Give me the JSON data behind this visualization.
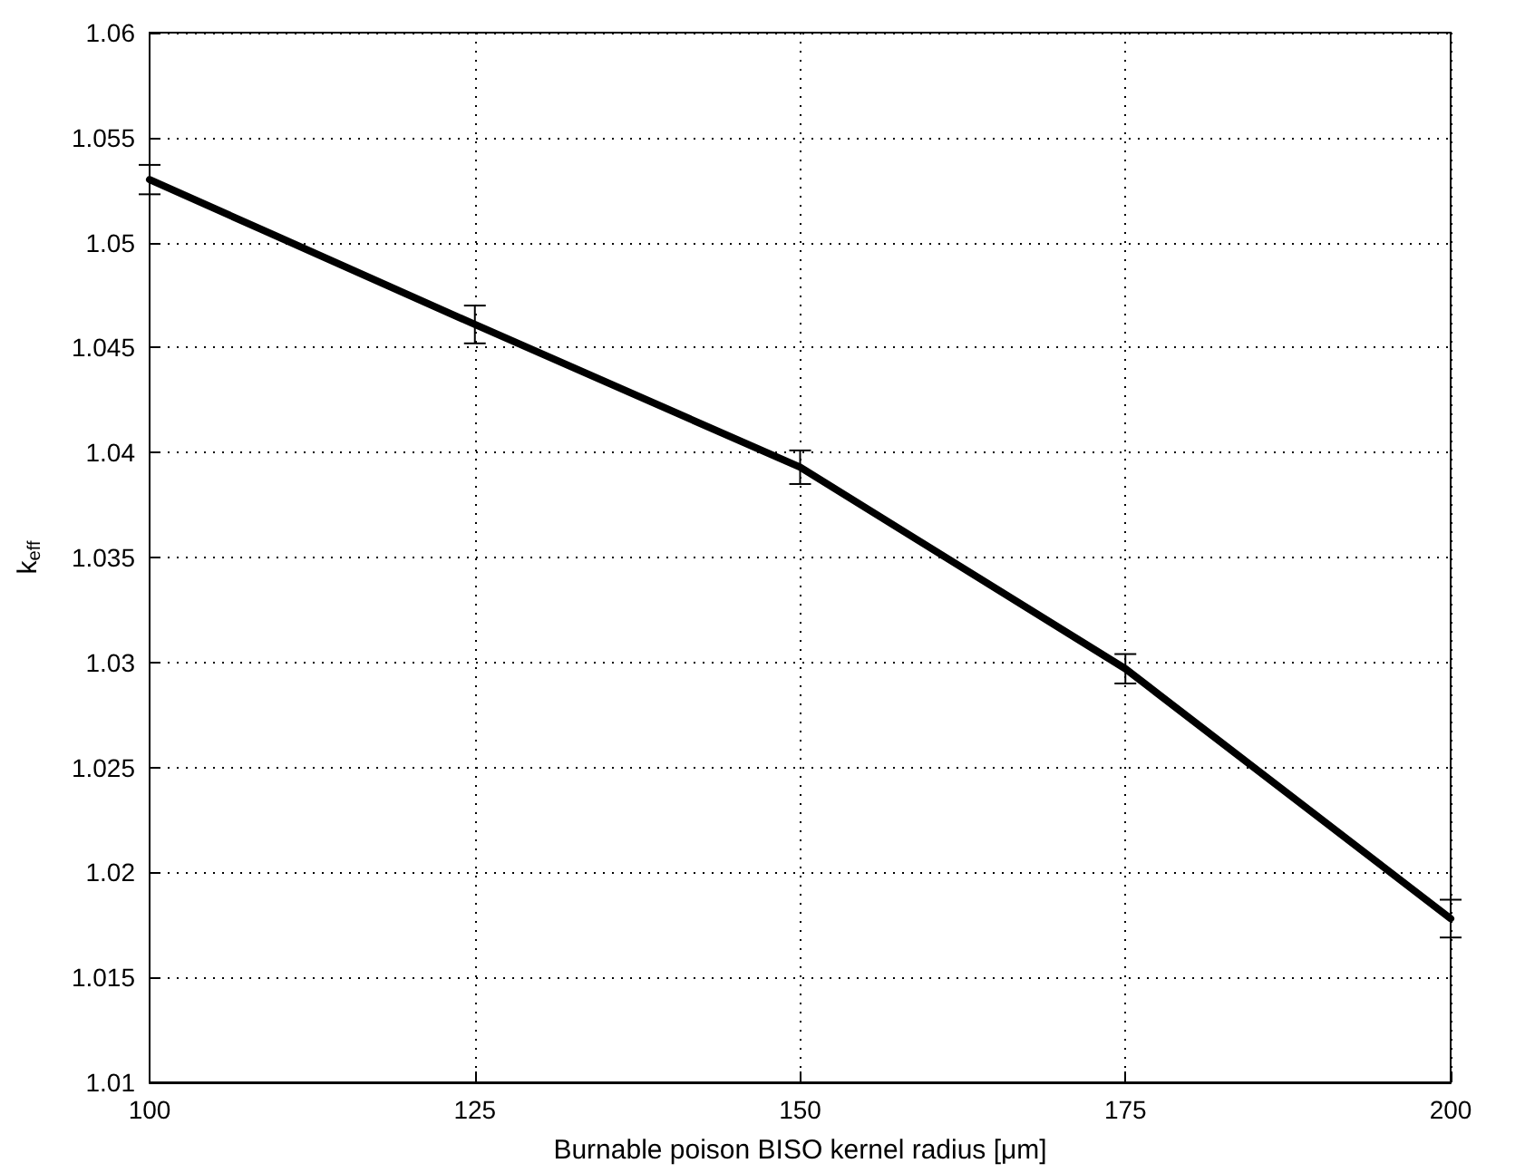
{
  "chart_data": {
    "type": "line",
    "xlabel": "Burnable poison BISO kernel radius [μm]",
    "ylabel": "k$_{eff}$",
    "x": [
      100,
      125,
      150,
      175,
      200
    ],
    "series": [
      {
        "color": "#000000",
        "values": [
          1.053,
          1.0461,
          1.0393,
          1.0297,
          1.0178
        ],
        "errors": [
          0.0007,
          0.0009,
          0.0008,
          0.0007,
          0.0009
        ]
      }
    ],
    "xlim": [
      100,
      200
    ],
    "xticks": [
      100,
      125,
      150,
      175,
      200
    ],
    "ylim": [
      1.01,
      1.06
    ],
    "yticks": [
      1.01,
      1.015,
      1.02,
      1.025,
      1.03,
      1.035,
      1.04,
      1.045,
      1.05,
      1.055,
      1.06
    ],
    "grid": true,
    "marker": "none",
    "line_style": "solid"
  }
}
